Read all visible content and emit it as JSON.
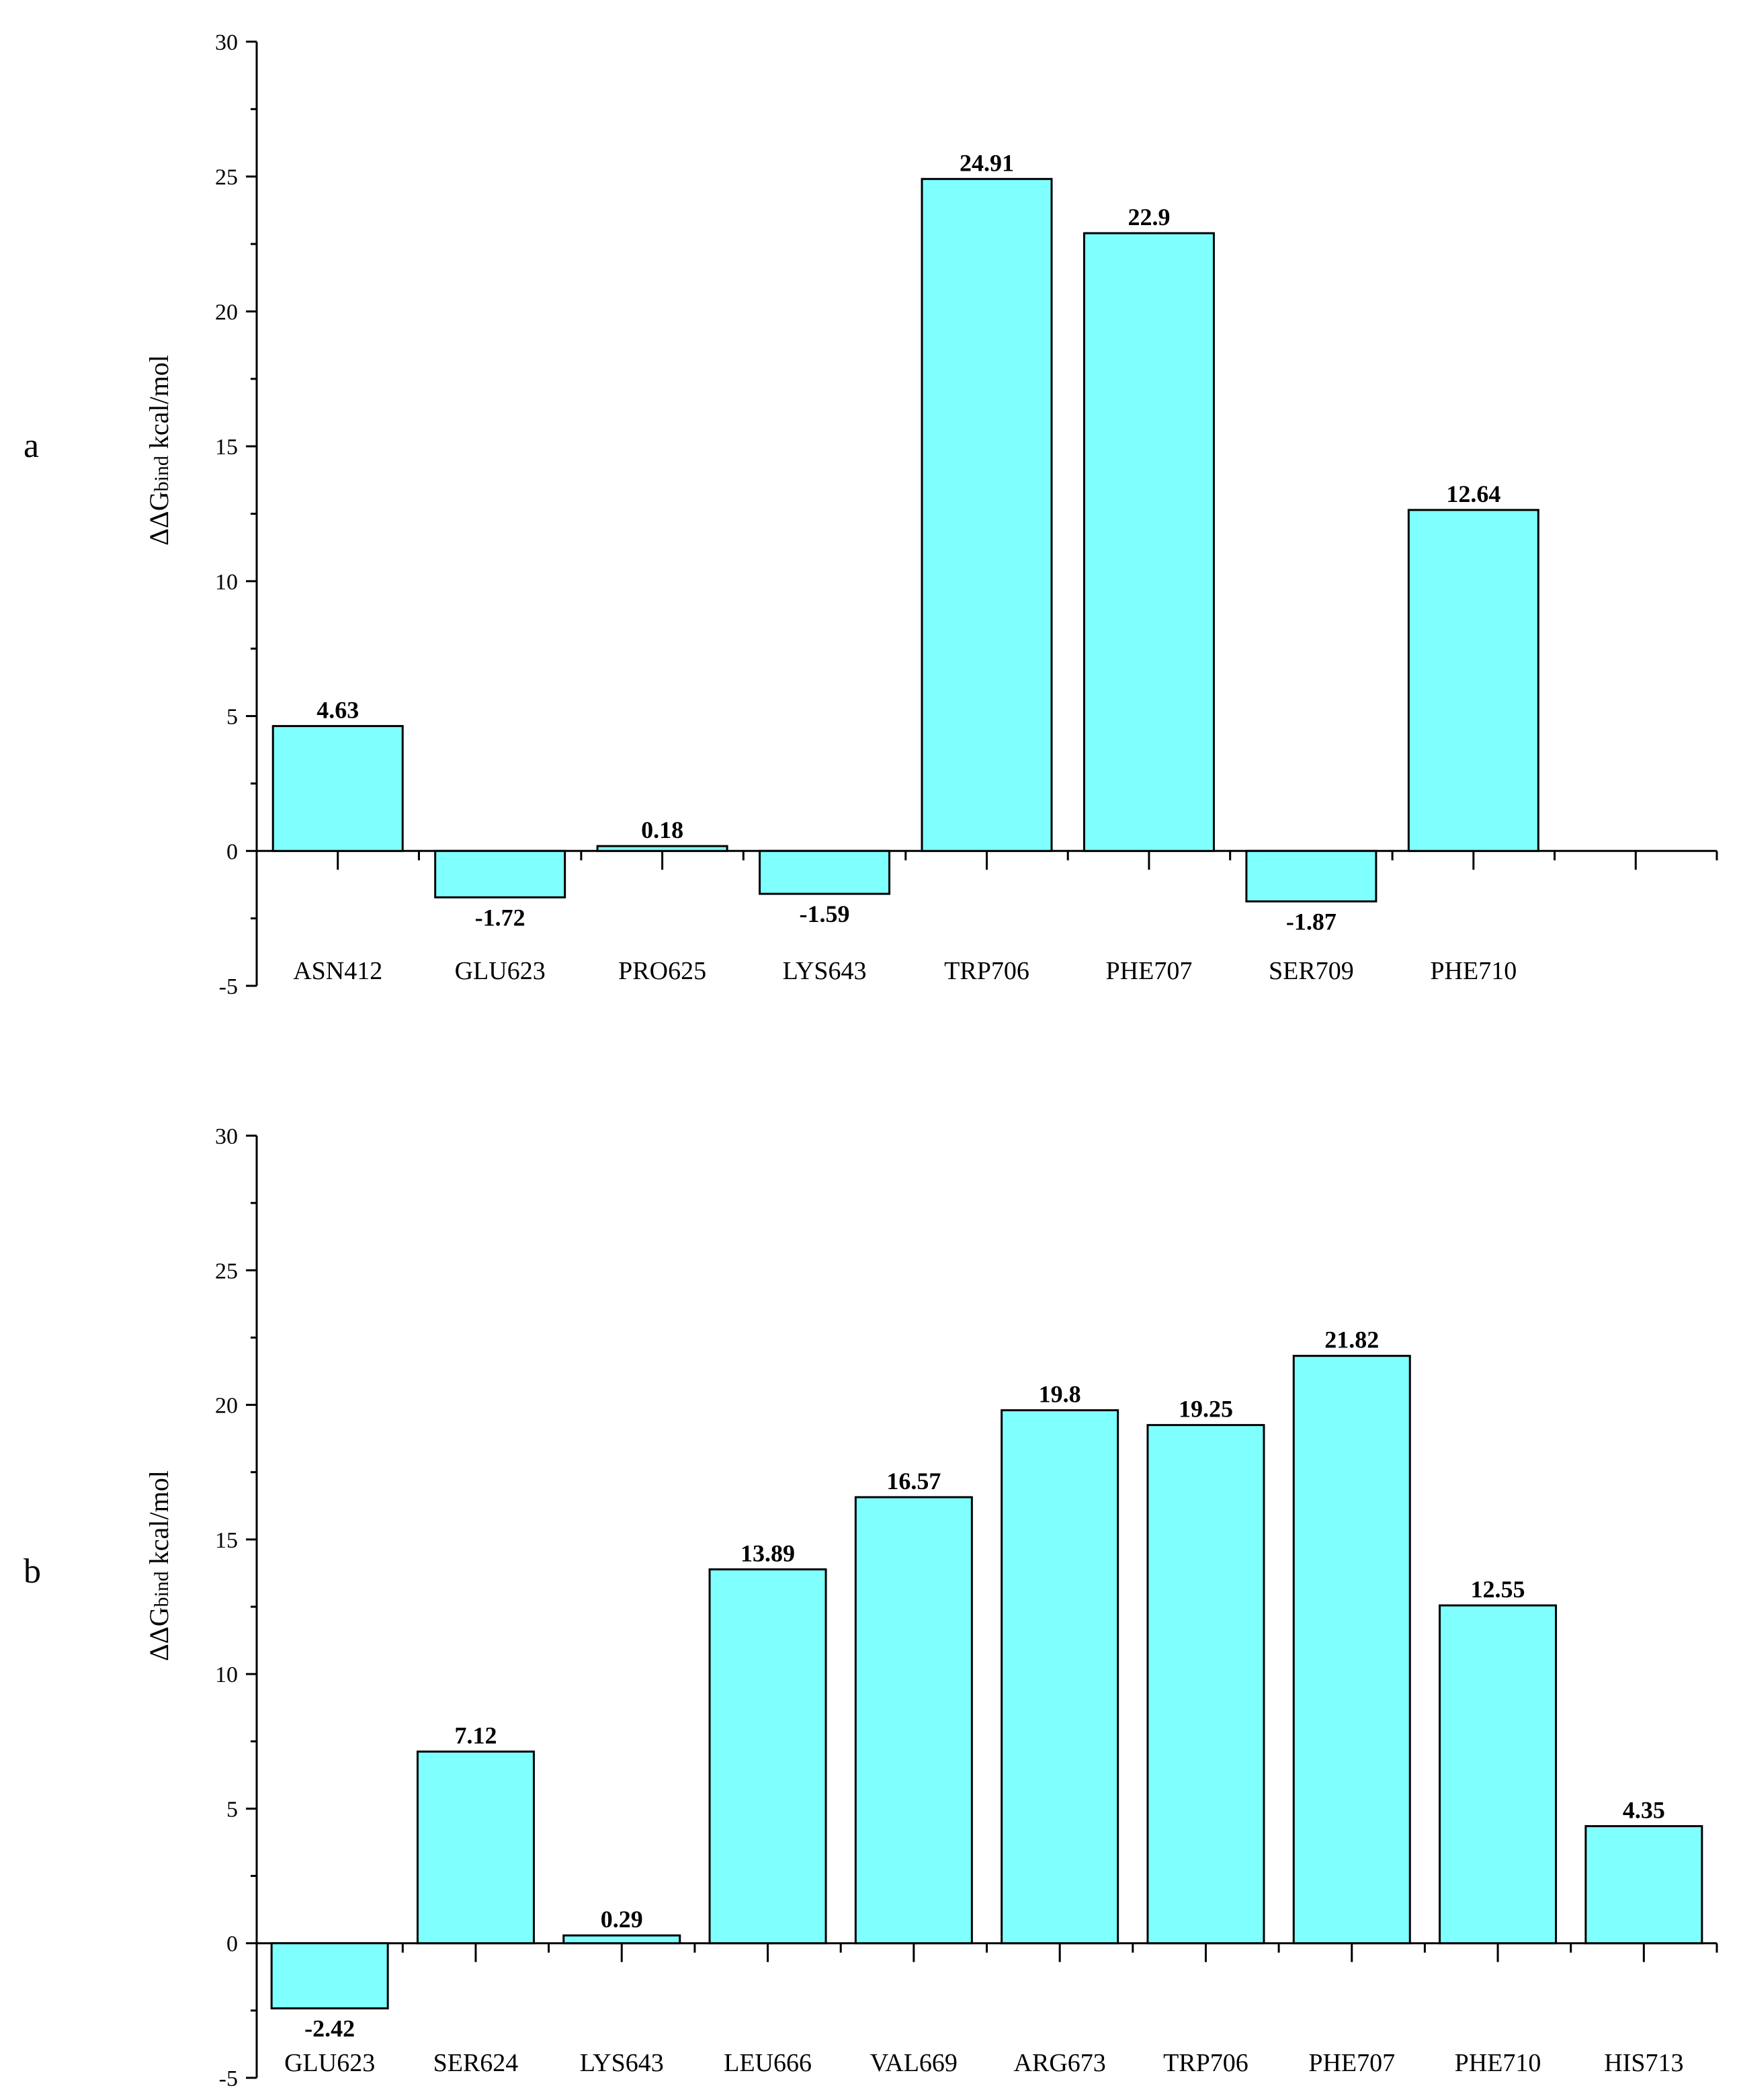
{
  "bar_color": "#80ffff",
  "chart_data": [
    {
      "type": "bar",
      "panel_label": "a",
      "ylabel": "ΔΔG",
      "ylabel_sub": "bind",
      "ylabel_unit": " kcal/mol",
      "ylim": [
        -5,
        30
      ],
      "yticks": [
        -5,
        0,
        5,
        10,
        15,
        20,
        25,
        30
      ],
      "categories": [
        "ASN412",
        "GLU623",
        "PRO625",
        "LYS643",
        "TRP706",
        "PHE707",
        "SER709",
        "PHE710",
        ""
      ],
      "values": [
        4.63,
        -1.72,
        0.18,
        -1.59,
        24.91,
        22.9,
        -1.87,
        12.64,
        null
      ],
      "value_labels": [
        "4.63",
        "-1.72",
        "0.18",
        "-1.59",
        "24.91",
        "22.9",
        "-1.87",
        "12.64",
        ""
      ],
      "grid": false,
      "legend": "none"
    },
    {
      "type": "bar",
      "panel_label": "b",
      "ylabel": "ΔΔG",
      "ylabel_sub": "bind",
      "ylabel_unit": " kcal/mol",
      "ylim": [
        -5,
        30
      ],
      "yticks": [
        -5,
        0,
        5,
        10,
        15,
        20,
        25,
        30
      ],
      "categories": [
        "GLU623",
        "SER624",
        "LYS643",
        "LEU666",
        "VAL669",
        "ARG673",
        "TRP706",
        "PHE707",
        "PHE710",
        "HIS713"
      ],
      "values": [
        -2.42,
        7.12,
        0.29,
        13.89,
        16.57,
        19.8,
        19.25,
        21.82,
        12.55,
        4.35
      ],
      "value_labels": [
        "-2.42",
        "7.12",
        "0.29",
        "13.89",
        "16.57",
        "19.8",
        "19.25",
        "21.82",
        "12.55",
        "4.35"
      ],
      "grid": false,
      "legend": "none"
    }
  ]
}
